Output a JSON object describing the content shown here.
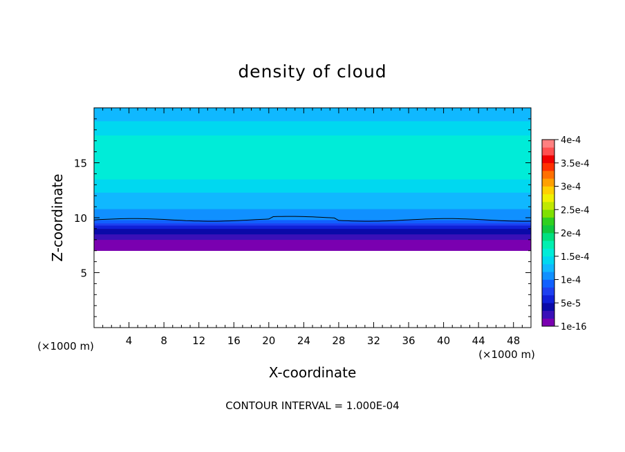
{
  "chart_data": {
    "type": "heatmap",
    "title": "density of cloud",
    "xlabel": "X-coordinate",
    "ylabel": "Z-coordinate",
    "x_unit_left": "(×1000 m)",
    "x_unit_right": "(×1000 m)",
    "xlim": [
      0,
      50
    ],
    "ylim": [
      0,
      20
    ],
    "x_ticks": [
      4,
      8,
      12,
      16,
      20,
      24,
      28,
      32,
      36,
      40,
      44,
      48
    ],
    "y_ticks": [
      5,
      10,
      15
    ],
    "footer": "CONTOUR INTERVAL = 1.000E-04",
    "colorbar": {
      "labels": [
        "1e-16",
        "5e-5",
        "1e-4",
        "1.5e-4",
        "2e-4",
        "2.5e-4",
        "3e-4",
        "3.5e-4",
        "4e-4"
      ],
      "colors": [
        "#7a00b0",
        "#3a10b8",
        "#0a0aa8",
        "#1020d8",
        "#1e40f0",
        "#1060ff",
        "#1090ff",
        "#10b8ff",
        "#00d8f0",
        "#00ecd8",
        "#00f0b0",
        "#00e080",
        "#10c840",
        "#30d020",
        "#80e000",
        "#c0e800",
        "#f0f000",
        "#ffd000",
        "#ffa000",
        "#ff7000",
        "#ff3000",
        "#f00000",
        "#ff5050",
        "#ff8080"
      ]
    },
    "z_profile": [
      {
        "z": 7.0,
        "value": 0.0
      },
      {
        "z": 8.0,
        "value": 1.5e-05
      },
      {
        "z": 8.6,
        "value": 3.5e-05
      },
      {
        "z": 9.2,
        "value": 6e-05
      },
      {
        "z": 9.8,
        "value": 0.0001
      },
      {
        "z": 11.0,
        "value": 0.00012
      },
      {
        "z": 12.5,
        "value": 0.000135
      },
      {
        "z": 13.5,
        "value": 0.00015
      },
      {
        "z": 16.5,
        "value": 0.00016
      },
      {
        "z": 17.5,
        "value": 0.00015
      },
      {
        "z": 19.0,
        "value": 0.00013
      },
      {
        "z": 20.0,
        "value": 0.00012
      }
    ],
    "contour_line_z": 9.8,
    "cloud_base_z": 7.0
  }
}
